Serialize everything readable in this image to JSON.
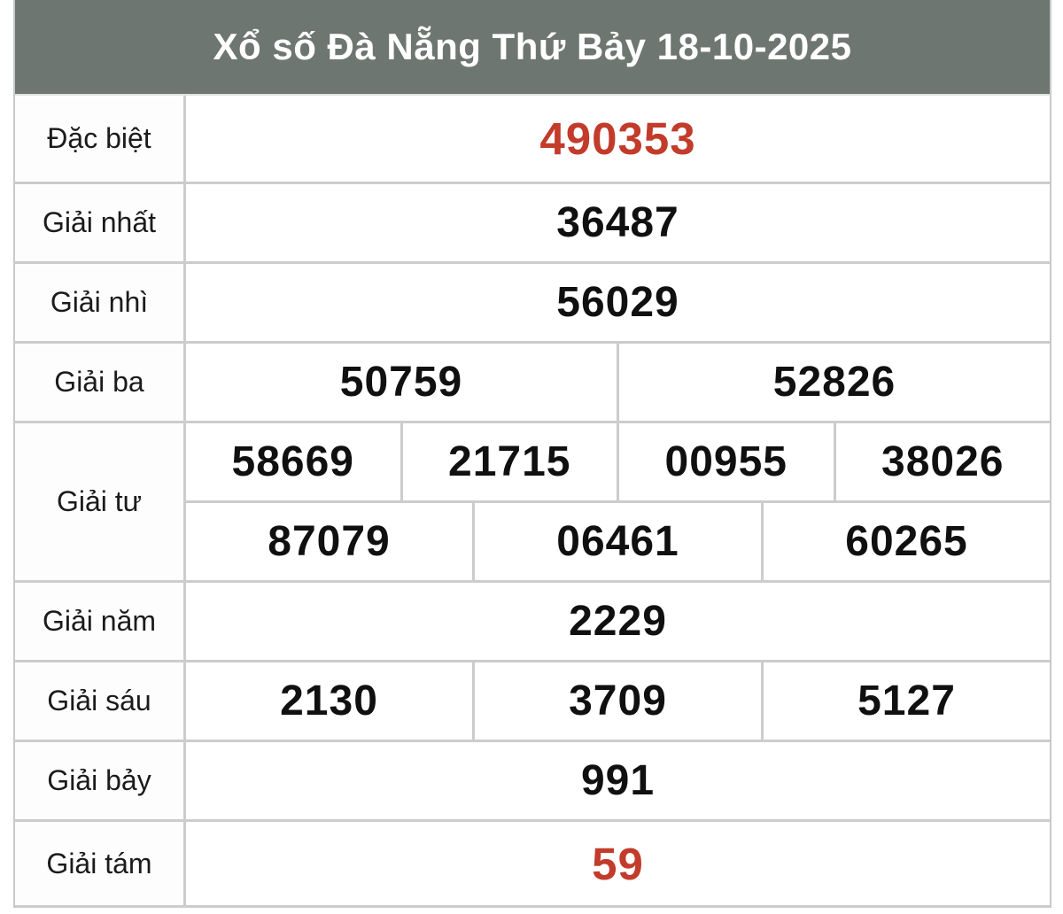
{
  "header": {
    "title": "Xổ số Đà Nẵng Thứ Bảy 18-10-2025"
  },
  "colors": {
    "header_bg": "#6e7672",
    "header_text": "#ffffff",
    "highlight_red": "#c23b2b",
    "number_text": "#101010",
    "label_text": "#1b1b1b",
    "border": "#cccccc",
    "cell_bg": "#ffffff"
  },
  "results_table": {
    "rows": [
      {
        "id": "dac-biet",
        "label": "Đặc biệt",
        "highlight": true,
        "cells": [
          [
            "490353"
          ]
        ]
      },
      {
        "id": "giai-nhat",
        "label": "Giải nhất",
        "highlight": false,
        "cells": [
          [
            "36487"
          ]
        ]
      },
      {
        "id": "giai-nhi",
        "label": "Giải nhì",
        "highlight": false,
        "cells": [
          [
            "56029"
          ]
        ]
      },
      {
        "id": "giai-ba",
        "label": "Giải ba",
        "highlight": false,
        "cells": [
          [
            "50759",
            "52826"
          ]
        ]
      },
      {
        "id": "giai-tu",
        "label": "Giải tư",
        "highlight": false,
        "cells": [
          [
            "58669",
            "21715",
            "00955",
            "38026"
          ],
          [
            "87079",
            "06461",
            "60265"
          ]
        ]
      },
      {
        "id": "giai-nam",
        "label": "Giải năm",
        "highlight": false,
        "cells": [
          [
            "2229"
          ]
        ]
      },
      {
        "id": "giai-sau",
        "label": "Giải sáu",
        "highlight": false,
        "cells": [
          [
            "2130",
            "3709",
            "5127"
          ]
        ]
      },
      {
        "id": "giai-bay",
        "label": "Giải bảy",
        "highlight": false,
        "cells": [
          [
            "991"
          ]
        ]
      },
      {
        "id": "giai-tam",
        "label": "Giải tám",
        "highlight": true,
        "cells": [
          [
            "59"
          ]
        ]
      }
    ]
  }
}
